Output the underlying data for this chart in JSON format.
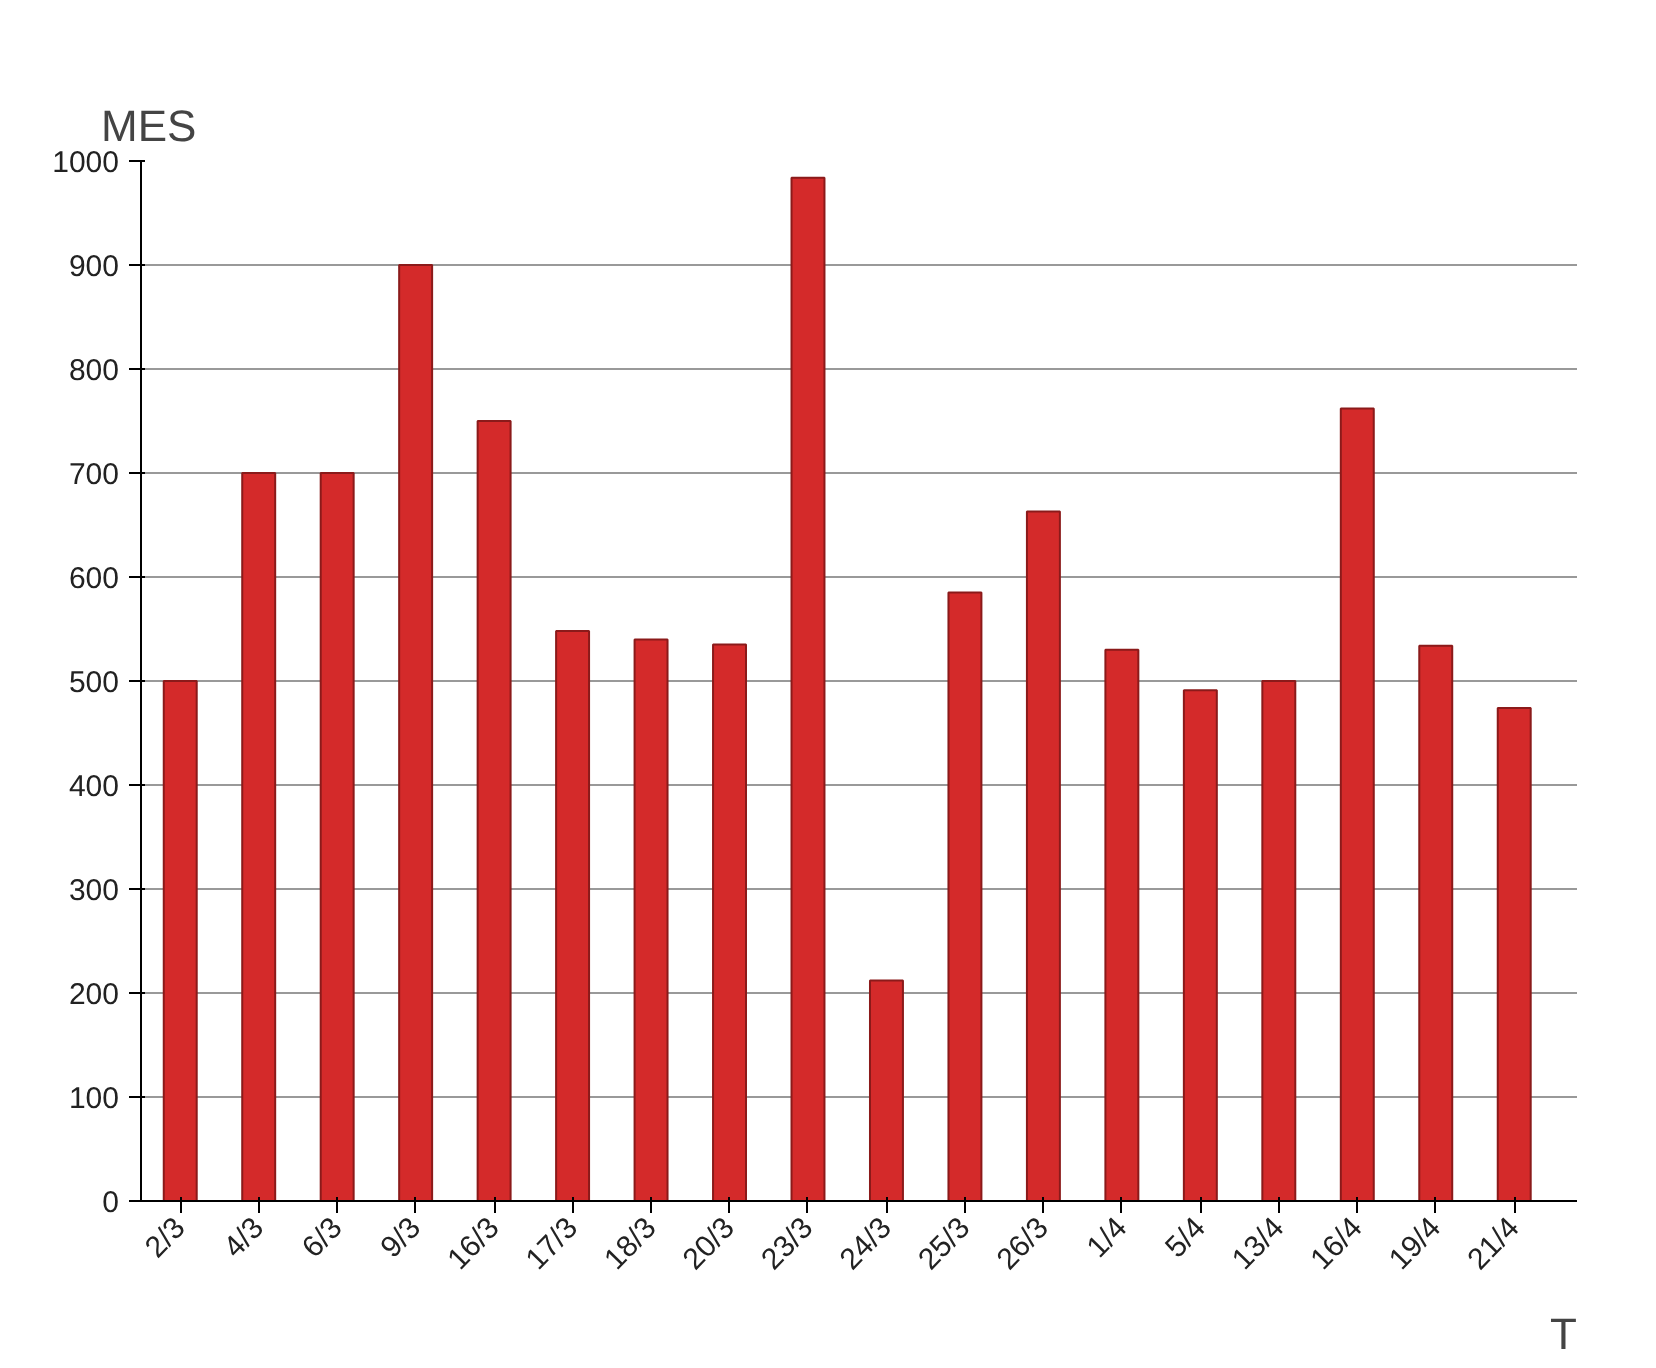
{
  "chart_data": {
    "type": "bar",
    "xlabel": "T",
    "ylabel": "MES",
    "categories": [
      "2/3",
      "4/3",
      "6/3",
      "9/3",
      "16/3",
      "17/3",
      "18/3",
      "20/3",
      "23/3",
      "24/3",
      "25/3",
      "26/3",
      "1/4",
      "5/4",
      "13/4",
      "16/4",
      "19/4",
      "21/4"
    ],
    "values": [
      500,
      700,
      700,
      900,
      750,
      548,
      540,
      535,
      984,
      212,
      585,
      663,
      530,
      491,
      500,
      762,
      534,
      474
    ],
    "color": "#d42a2a",
    "ylim": [
      0,
      1000
    ],
    "yticks": [
      0,
      100,
      200,
      300,
      400,
      500,
      600,
      700,
      800,
      900,
      1000
    ],
    "grid": "y",
    "legend": false
  }
}
